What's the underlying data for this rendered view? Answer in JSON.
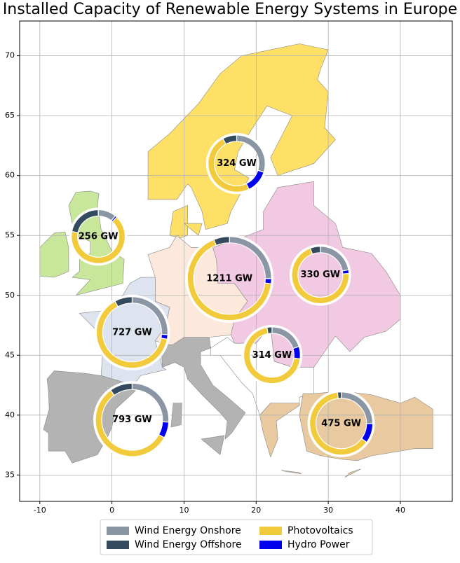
{
  "chart_data": {
    "type": "donut_map",
    "title": "Installed Capacity of Renewable Energy Systems in Europe",
    "x": [
      17.3,
      -1.9,
      16.3,
      28.9,
      2.8,
      22.2,
      2.8,
      31.8
    ],
    "y": [
      61.0,
      54.9,
      51.4,
      51.7,
      46.9,
      45.0,
      39.6,
      39.3
    ],
    "totals": [
      324,
      256,
      1211,
      330,
      727,
      314,
      793,
      475
    ],
    "value_labels": [
      "324 GW",
      "256 GW",
      "1211 GW",
      "330 GW",
      "727 GW",
      "314 GW",
      "793 GW",
      "475 GW"
    ],
    "series": [
      {
        "name": "Wind Energy Onshore",
        "color": "#8a96a3",
        "values": [
          97,
          28,
          303,
          73,
          189,
          63,
          206,
          119
        ]
      },
      {
        "name": "Wind Energy Offshore",
        "color": "#344a5e",
        "values": [
          26,
          56,
          73,
          19,
          58,
          9,
          79,
          9
        ]
      },
      {
        "name": "Photovoltaics",
        "color": "#f2cb3c",
        "values": [
          159,
          169,
          811,
          231,
          465,
          220,
          452,
          299
        ]
      },
      {
        "name": "Hydro Power",
        "color": "#0000ee",
        "values": [
          42,
          3,
          24,
          7,
          15,
          22,
          56,
          48
        ]
      }
    ],
    "xlim": [
      -12.8,
      47.2
    ],
    "ylim": [
      32.8,
      72.9
    ],
    "xticks": [
      -10,
      0,
      10,
      20,
      30,
      40
    ],
    "yticks": [
      35,
      40,
      45,
      50,
      55,
      60,
      65,
      70
    ],
    "grid": true,
    "legend": "lower center"
  }
}
